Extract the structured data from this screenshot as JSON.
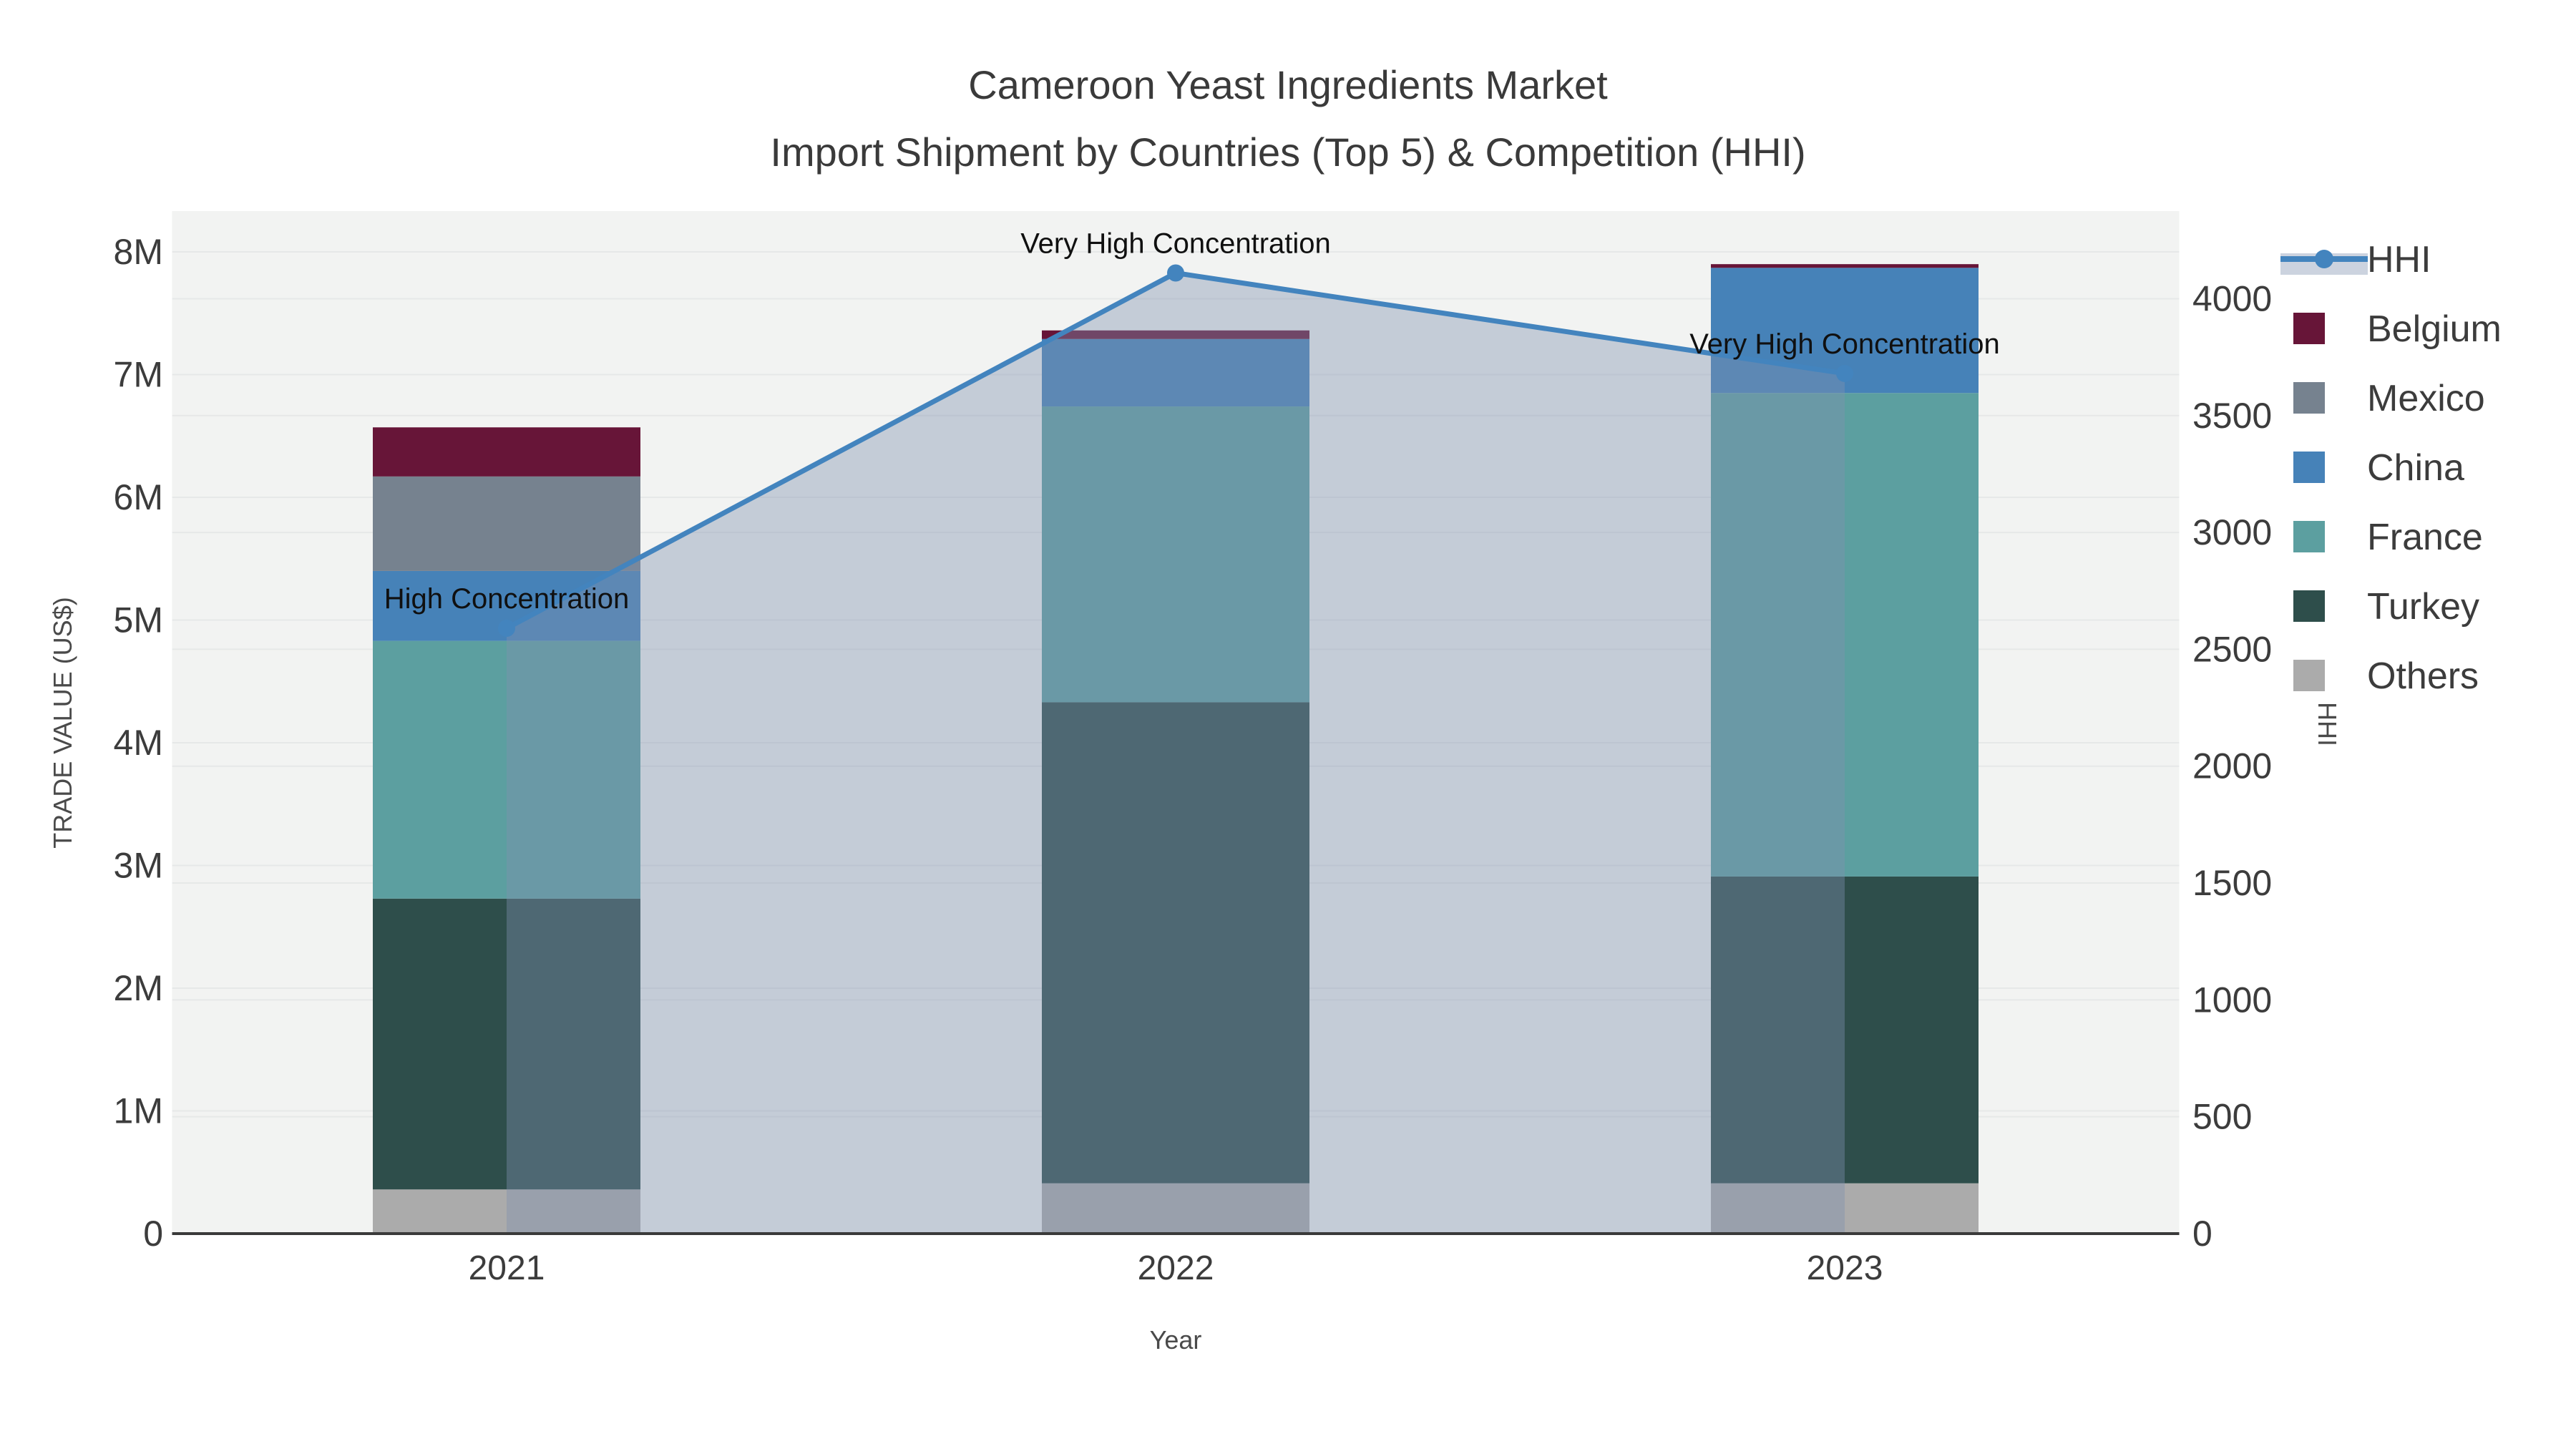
{
  "title": {
    "line1": "Cameroon Yeast Ingredients Market",
    "line2": "Import Shipment by Countries (Top 5) & Competition (HHI)"
  },
  "axes": {
    "x": {
      "title": "Year",
      "tick_labels": [
        "2021",
        "2022",
        "2023"
      ]
    },
    "y_left": {
      "title": "TRADE VALUE (US$)",
      "tick_labels": [
        "0",
        "1M",
        "2M",
        "3M",
        "4M",
        "5M",
        "6M",
        "7M",
        "8M"
      ],
      "tick_values_millions": [
        0,
        1,
        2,
        3,
        4,
        5,
        6,
        7,
        8
      ],
      "range_millions": [
        0,
        8.33
      ]
    },
    "y_right": {
      "title": "HHI",
      "tick_labels": [
        "0",
        "500",
        "1000",
        "1500",
        "2000",
        "2500",
        "3000",
        "3500",
        "4000"
      ],
      "tick_values": [
        0,
        500,
        1000,
        1500,
        2000,
        2500,
        3000,
        3500,
        4000
      ],
      "range": [
        0,
        4375
      ]
    }
  },
  "legend": {
    "position": "right",
    "items": [
      {
        "label": "HHI",
        "type": "line",
        "color": "#4384BE"
      },
      {
        "label": "Belgium",
        "type": "square",
        "color": "#671538"
      },
      {
        "label": "Mexico",
        "type": "square",
        "color": "#76828F"
      },
      {
        "label": "China",
        "type": "square",
        "color": "#4682B8"
      },
      {
        "label": "France",
        "type": "square",
        "color": "#5C9FA0"
      },
      {
        "label": "Turkey",
        "type": "square",
        "color": "#2E4E4B"
      },
      {
        "label": "Others",
        "type": "square",
        "color": "#ABABAB"
      }
    ]
  },
  "chart_data": {
    "type": "bar",
    "subtype": "stacked-bars-with-hhi-line-and-area",
    "categories": [
      "2021",
      "2022",
      "2023"
    ],
    "bar_value_unit": "trade value (US$), millions",
    "series": [
      {
        "name": "Others",
        "color": "#ABABAB",
        "values": [
          0.36,
          0.41,
          0.41
        ]
      },
      {
        "name": "Turkey",
        "color": "#2E4E4B",
        "values": [
          2.37,
          3.92,
          2.5
        ]
      },
      {
        "name": "France",
        "color": "#5C9FA0",
        "values": [
          2.1,
          2.41,
          3.94
        ]
      },
      {
        "name": "China",
        "color": "#4682B8",
        "values": [
          0.57,
          0.55,
          1.02
        ]
      },
      {
        "name": "Mexico",
        "color": "#76828F",
        "values": [
          0.77,
          0.0,
          0.0
        ]
      },
      {
        "name": "Belgium",
        "color": "#671538",
        "values": [
          0.4,
          0.07,
          0.03
        ]
      }
    ],
    "bar_totals_millions": [
      6.57,
      7.36,
      7.9
    ],
    "line_series": {
      "name": "HHI",
      "axis": "right",
      "color": "#4384BE",
      "area_fill_color": "rgba(128,145,175,0.40)",
      "values": [
        2590,
        4110,
        3680
      ]
    },
    "annotations": [
      {
        "category": "2021",
        "text": "High Concentration"
      },
      {
        "category": "2022",
        "text": "Very High Concentration"
      },
      {
        "category": "2023",
        "text": "Very High Concentration"
      }
    ],
    "grid": true,
    "plot_background": "#F2F3F2",
    "grid_color": "#E6E8E8",
    "axis_line_color": "#3A3A3A",
    "stack_order_bottom_to_top": [
      "Others",
      "Turkey",
      "France",
      "China",
      "Mexico",
      "Belgium"
    ]
  }
}
